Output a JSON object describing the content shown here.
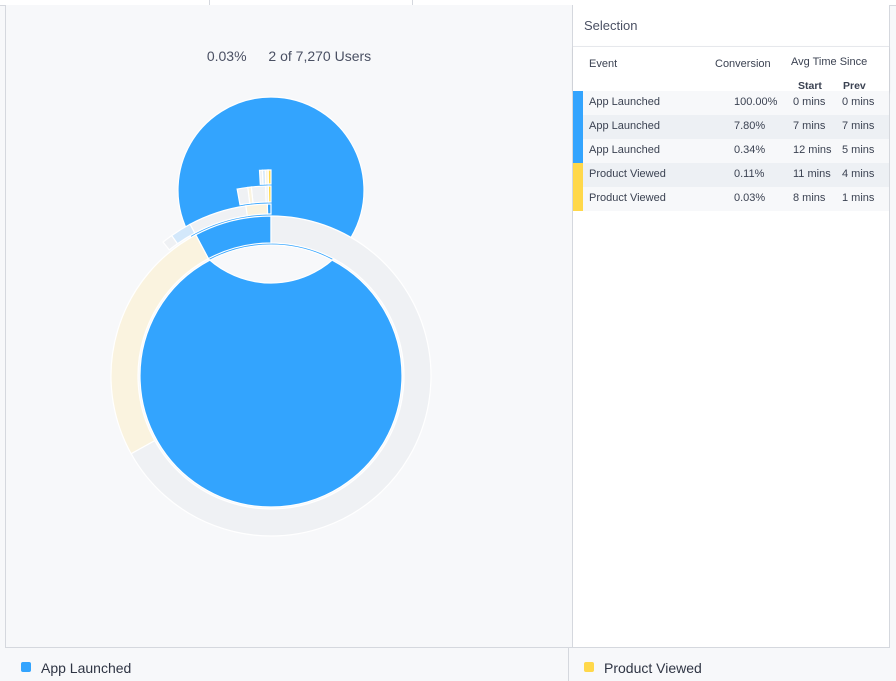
{
  "summary": {
    "percent": "0.03%",
    "users": "2 of 7,270 Users"
  },
  "colors": {
    "app_launched": "#33a4fe",
    "product_viewed": "#ffd84a",
    "app_launched_light": "#d3e8fb",
    "product_viewed_light": "#faf3df",
    "other": "#eff1f4",
    "panel_bg": "#f7f8fa"
  },
  "selection": {
    "title": "Selection",
    "headers": {
      "event": "Event",
      "conversion": "Conversion",
      "avg_time": "Avg Time Since",
      "start": "Start",
      "prev": "Prev"
    },
    "rows": [
      {
        "event": "App Launched",
        "conversion": "100.00%",
        "start": "0 mins",
        "prev": "0 mins",
        "color": "#33a4fe"
      },
      {
        "event": "App Launched",
        "conversion": "7.80%",
        "start": "7 mins",
        "prev": "7 mins",
        "color": "#33a4fe"
      },
      {
        "event": "App Launched",
        "conversion": "0.34%",
        "start": "12 mins",
        "prev": "5 mins",
        "color": "#33a4fe"
      },
      {
        "event": "Product Viewed",
        "conversion": "0.11%",
        "start": "11 mins",
        "prev": "4 mins",
        "color": "#ffd84a"
      },
      {
        "event": "Product Viewed",
        "conversion": "0.03%",
        "start": "8 mins",
        "prev": "1 mins",
        "color": "#ffd84a"
      }
    ]
  },
  "legend": [
    {
      "label": "App Launched",
      "color": "#33a4fe"
    },
    {
      "label": "Product Viewed",
      "color": "#ffd84a"
    }
  ],
  "chart_data": {
    "type": "sunburst",
    "title": "",
    "rings": [
      {
        "level": 1,
        "segments": [
          {
            "event": "App Launched",
            "share": 100.0,
            "color": "#33a4fe"
          }
        ]
      },
      {
        "level": 2,
        "segments": [
          {
            "event": "App Launched",
            "share": 7.8,
            "color": "#33a4fe"
          },
          {
            "event": "Product Viewed",
            "share": 25.0,
            "color": "#faf3df"
          },
          {
            "event": "Other",
            "share": 67.2,
            "color": "#eff1f4"
          }
        ]
      },
      {
        "level": 3,
        "segments": [
          {
            "event": "App Launched",
            "share": 0.34,
            "color": "#33a4fe"
          },
          {
            "event": "Product Viewed",
            "share": 2.0,
            "color": "#faf3df"
          },
          {
            "event": "Other",
            "share": 5.46,
            "color": "#eff1f4"
          },
          {
            "event": "App Launched",
            "share": 2.0,
            "color": "#d3e8fb"
          },
          {
            "event": "Other",
            "share": 1.0,
            "color": "#eff1f4"
          }
        ]
      },
      {
        "level": 4,
        "segments": [
          {
            "event": "Product Viewed",
            "share": 0.11,
            "color": "#ffd84a"
          },
          {
            "event": "Other",
            "share": 0.23,
            "color": "#eff1f4"
          },
          {
            "event": "Other",
            "share": 1.2,
            "color": "#eff1f4"
          },
          {
            "event": "Product Viewed",
            "share": 0.3,
            "color": "#faf3df"
          },
          {
            "event": "Other",
            "share": 0.9,
            "color": "#eff1f4"
          }
        ]
      },
      {
        "level": 5,
        "segments": [
          {
            "event": "Product Viewed",
            "share": 0.03,
            "color": "#ffd84a"
          },
          {
            "event": "Other",
            "share": 0.08,
            "color": "#faf3df"
          },
          {
            "event": "App Launched",
            "share": 0.1,
            "color": "#d3e8fb"
          },
          {
            "event": "Other",
            "share": 0.1,
            "color": "#eff1f4"
          }
        ]
      }
    ]
  }
}
